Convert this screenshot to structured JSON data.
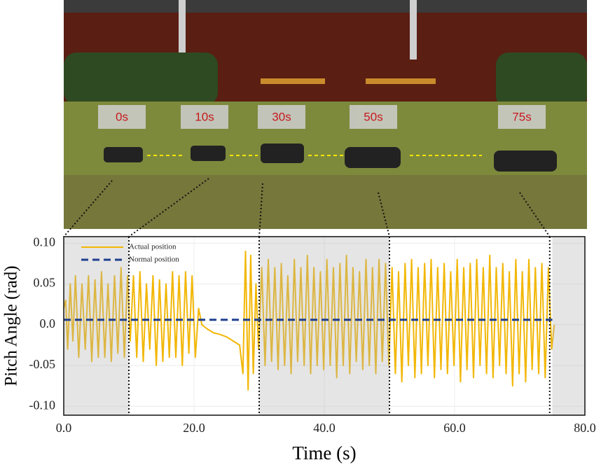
{
  "photo_labels": [
    "0s",
    "10s",
    "30s",
    "50s",
    "75s"
  ],
  "chart_data": {
    "type": "line",
    "xlabel": "Time (s)",
    "ylabel": "Pitch Angle (rad)",
    "xlim": [
      0,
      80
    ],
    "ylim": [
      -0.111,
      0.108
    ],
    "xticks": [
      {
        "value": 0,
        "label": "0.0"
      },
      {
        "value": 20,
        "label": "20.0"
      },
      {
        "value": 40,
        "label": "40.0"
      },
      {
        "value": 60,
        "label": "60.0"
      },
      {
        "value": 80,
        "label": "80.0"
      }
    ],
    "yticks": [
      {
        "value": 0.1,
        "label": "0.10"
      },
      0.05,
      {
        "value": 0,
        "label": "0.0"
      },
      -0.05,
      {
        "value": -0.1,
        "label": "-0.10"
      }
    ],
    "grid": true,
    "shaded_regions": [
      [
        0,
        10
      ],
      [
        30,
        50
      ],
      [
        75,
        80
      ]
    ],
    "markers": [
      10,
      30,
      50,
      74.6
    ],
    "series": [
      {
        "name": "Actual position",
        "color": "#f2b705",
        "style": "solid",
        "x": [
          0,
          0.3,
          0.6,
          1.0,
          1.4,
          1.8,
          2.3,
          2.8,
          3.3,
          3.8,
          4.3,
          4.8,
          5.3,
          5.8,
          6.3,
          6.8,
          7.3,
          7.8,
          8.3,
          8.8,
          9.3,
          9.8,
          10.2,
          10.7,
          11.2,
          11.7,
          12.2,
          12.7,
          13.2,
          13.7,
          14.2,
          14.7,
          15.2,
          15.7,
          16.2,
          16.7,
          17.2,
          17.7,
          18.2,
          18.7,
          19.2,
          19.7,
          20.2,
          20.7,
          21.2,
          22,
          23,
          24,
          25,
          26,
          27,
          27.5,
          27.9,
          28.3,
          28.7,
          29.1,
          29.5,
          29.9,
          30.4,
          30.9,
          31.4,
          31.9,
          32.4,
          32.9,
          33.4,
          33.9,
          34.4,
          34.9,
          35.4,
          35.9,
          36.4,
          36.9,
          37.4,
          37.9,
          38.4,
          38.9,
          39.4,
          39.9,
          40.4,
          40.9,
          41.4,
          41.9,
          42.4,
          42.9,
          43.4,
          43.9,
          44.4,
          44.9,
          45.4,
          45.9,
          46.4,
          46.9,
          47.4,
          47.9,
          48.4,
          48.9,
          49.4,
          49.9,
          50.4,
          50.9,
          51.4,
          51.9,
          52.4,
          52.9,
          53.4,
          53.9,
          54.4,
          54.9,
          55.4,
          55.9,
          56.4,
          56.9,
          57.4,
          57.9,
          58.4,
          58.9,
          59.4,
          59.9,
          60.4,
          60.9,
          61.4,
          61.9,
          62.4,
          62.9,
          63.4,
          63.9,
          64.4,
          64.9,
          65.4,
          65.9,
          66.4,
          66.9,
          67.4,
          67.9,
          68.4,
          68.9,
          69.4,
          69.9,
          70.4,
          70.9,
          71.4,
          71.9,
          72.4,
          72.9,
          73.4,
          73.9,
          74.4,
          74.9,
          75.3
        ],
        "values": [
          0.02,
          0.03,
          -0.03,
          0.05,
          -0.02,
          0.06,
          -0.04,
          0.05,
          -0.03,
          0.06,
          -0.045,
          0.055,
          -0.04,
          0.065,
          -0.04,
          0.05,
          -0.045,
          0.06,
          -0.035,
          0.07,
          -0.04,
          0.06,
          -0.02,
          0.06,
          -0.04,
          0.065,
          -0.045,
          0.05,
          -0.03,
          0.06,
          -0.05,
          0.055,
          -0.045,
          0.05,
          -0.04,
          0.065,
          -0.04,
          0.06,
          -0.05,
          0.065,
          -0.035,
          0.06,
          -0.04,
          0.02,
          0.0,
          -0.005,
          -0.01,
          -0.012,
          -0.015,
          -0.02,
          -0.025,
          -0.06,
          0.09,
          -0.08,
          0.085,
          -0.06,
          0.05,
          -0.03,
          0.07,
          -0.05,
          0.08,
          -0.045,
          0.07,
          -0.055,
          0.075,
          -0.05,
          0.06,
          -0.06,
          0.08,
          -0.045,
          0.07,
          -0.05,
          0.085,
          -0.06,
          0.07,
          -0.05,
          0.065,
          -0.055,
          0.08,
          -0.05,
          0.07,
          -0.065,
          0.075,
          -0.05,
          0.085,
          -0.06,
          0.07,
          -0.045,
          0.065,
          -0.055,
          0.08,
          -0.05,
          0.07,
          -0.06,
          0.08,
          -0.045,
          0.075,
          -0.05,
          0.07,
          -0.06,
          0.065,
          -0.07,
          0.075,
          -0.05,
          0.08,
          -0.065,
          0.07,
          -0.06,
          0.075,
          -0.05,
          0.08,
          -0.065,
          0.07,
          -0.055,
          0.075,
          -0.06,
          0.065,
          -0.05,
          0.08,
          -0.07,
          0.07,
          -0.055,
          0.075,
          -0.065,
          0.08,
          -0.05,
          0.07,
          -0.06,
          0.085,
          -0.065,
          0.07,
          -0.05,
          0.075,
          -0.06,
          0.065,
          -0.075,
          0.08,
          -0.06,
          0.065,
          -0.07,
          0.08,
          -0.055,
          0.07,
          -0.06,
          0.075,
          -0.065,
          0.07,
          -0.03,
          0.0
        ]
      },
      {
        "name": "Normal position",
        "color": "#1f3f8f",
        "style": "dashed",
        "x": [
          0,
          75
        ],
        "values": [
          0.006,
          0.006
        ]
      }
    ]
  }
}
